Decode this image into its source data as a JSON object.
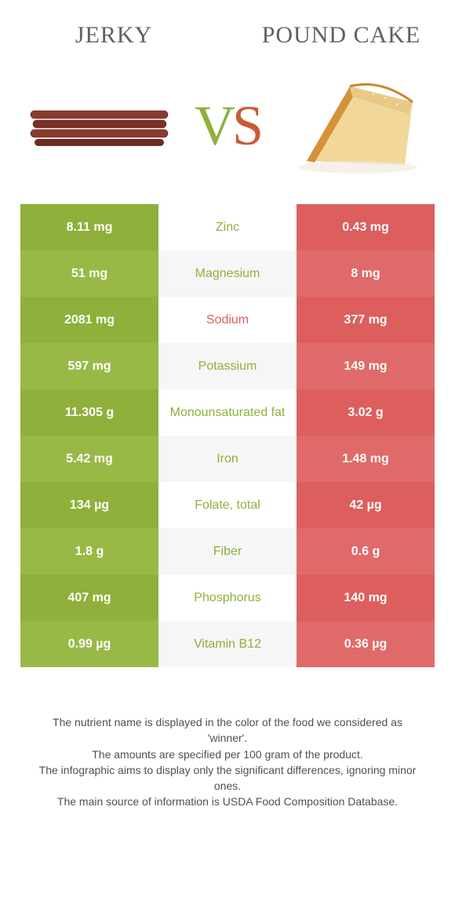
{
  "header": {
    "left": "Jerky",
    "right": "Pound cake"
  },
  "vs": {
    "v": "V",
    "s": "S"
  },
  "colors": {
    "left_shades": [
      "#8fb03a",
      "#99b947"
    ],
    "mid_shades": [
      "#ffffff",
      "#f6f6f6"
    ],
    "right_shades": [
      "#dc5f5e",
      "#e06a69"
    ],
    "left_text": "#8fb03a",
    "right_text": "#dc5f5e"
  },
  "rows": [
    {
      "left": "8.11 mg",
      "label": "Zinc",
      "right": "0.43 mg",
      "winner": "left"
    },
    {
      "left": "51 mg",
      "label": "Magnesium",
      "right": "8 mg",
      "winner": "left"
    },
    {
      "left": "2081 mg",
      "label": "Sodium",
      "right": "377 mg",
      "winner": "right"
    },
    {
      "left": "597 mg",
      "label": "Potassium",
      "right": "149 mg",
      "winner": "left"
    },
    {
      "left": "11.305 g",
      "label": "Monounsaturated fat",
      "right": "3.02 g",
      "winner": "left"
    },
    {
      "left": "5.42 mg",
      "label": "Iron",
      "right": "1.48 mg",
      "winner": "left"
    },
    {
      "left": "134 µg",
      "label": "Folate, total",
      "right": "42 µg",
      "winner": "left"
    },
    {
      "left": "1.8 g",
      "label": "Fiber",
      "right": "0.6 g",
      "winner": "left"
    },
    {
      "left": "407 mg",
      "label": "Phosphorus",
      "right": "140 mg",
      "winner": "left"
    },
    {
      "left": "0.99 µg",
      "label": "Vitamin B12",
      "right": "0.36 µg",
      "winner": "left"
    }
  ],
  "footer": {
    "line1": "The nutrient name is displayed in the color of the food we considered as 'winner'.",
    "line2": "The amounts are specified per 100 gram of the product.",
    "line3": "The infographic aims to display only the significant differences, ignoring minor ones.",
    "line4": "The main source of information is USDA Food Composition Database."
  }
}
